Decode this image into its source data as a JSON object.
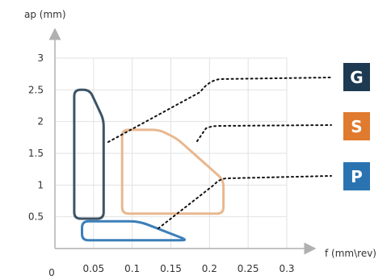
{
  "chart_data": {
    "type": "area",
    "title": "",
    "xlabel": "f (mm\\rev)",
    "ylabel": "ap (mm)",
    "xlim": [
      0,
      0.3
    ],
    "ylim": [
      0,
      3
    ],
    "grid": true,
    "origin_label": "0",
    "x_ticks": [
      0.05,
      0.1,
      0.15,
      0.2,
      0.25,
      0.3
    ],
    "x_tick_labels": [
      "0.05",
      "0.1",
      "0.15",
      "0.2",
      "0.25",
      "0.3"
    ],
    "y_ticks": [
      0.5,
      1,
      1.5,
      2,
      2.5,
      3
    ],
    "y_tick_labels": [
      "0.5",
      "1",
      "1.5",
      "2",
      "2.5",
      "3"
    ],
    "series": [
      {
        "name": "G",
        "color": "#3d5466",
        "points": [
          [
            0.025,
            2.5
          ],
          [
            0.045,
            2.5
          ],
          [
            0.063,
            2.03
          ],
          [
            0.063,
            0.47
          ],
          [
            0.025,
            0.47
          ]
        ]
      },
      {
        "name": "S",
        "color": "#e8b890",
        "points": [
          [
            0.087,
            1.87
          ],
          [
            0.135,
            1.87
          ],
          [
            0.158,
            1.73
          ],
          [
            0.218,
            1.08
          ],
          [
            0.218,
            0.55
          ],
          [
            0.087,
            0.55
          ]
        ]
      },
      {
        "name": "P",
        "color": "#3b7fb8",
        "points": [
          [
            0.035,
            0.43
          ],
          [
            0.103,
            0.43
          ],
          [
            0.115,
            0.4
          ],
          [
            0.172,
            0.13
          ],
          [
            0.035,
            0.13
          ]
        ]
      }
    ],
    "badges": [
      {
        "label": "G",
        "color": "#1d3a52"
      },
      {
        "label": "S",
        "color": "#e07a2e"
      },
      {
        "label": "P",
        "color": "#2a73b0"
      }
    ]
  }
}
